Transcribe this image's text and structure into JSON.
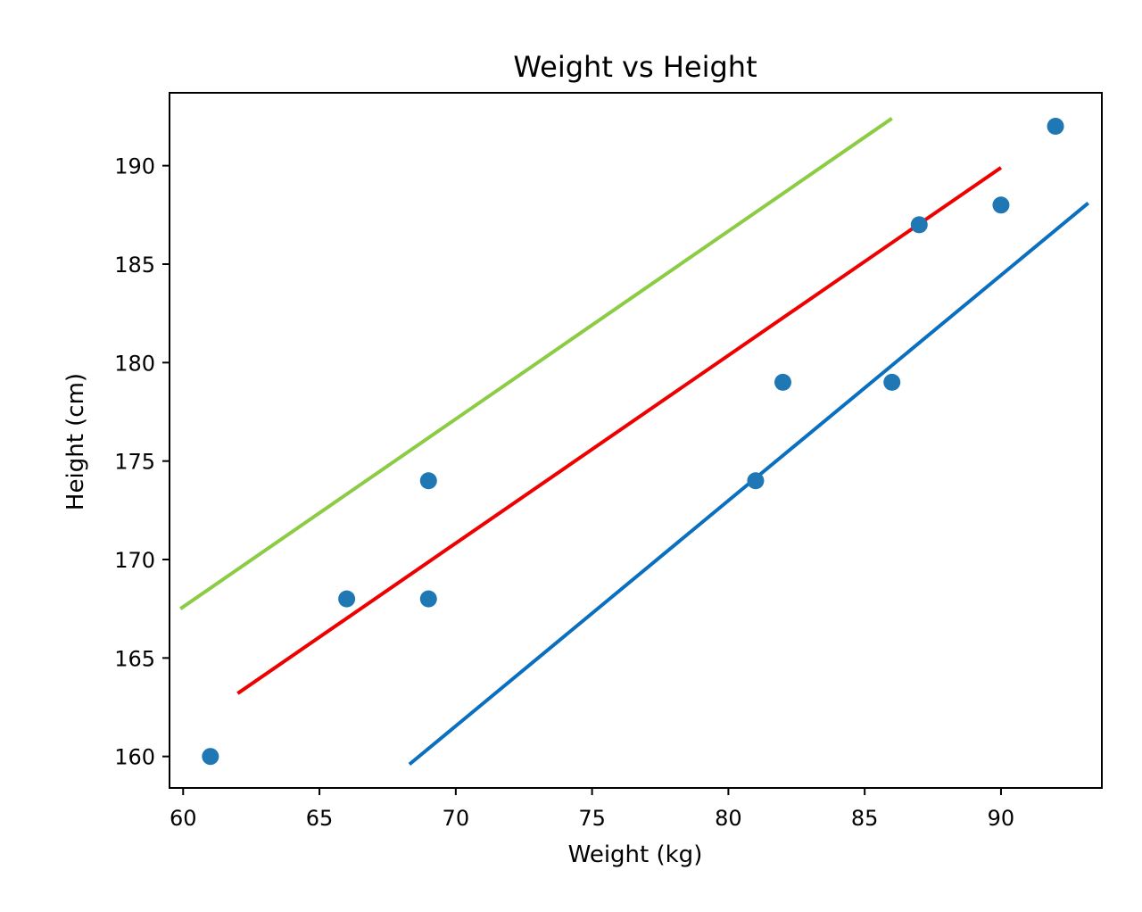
{
  "chart_data": {
    "type": "scatter",
    "title": "Weight vs Height",
    "xlabel": "Weight (kg)",
    "ylabel": "Height (cm)",
    "xlim": [
      59.5,
      93.7
    ],
    "ylim": [
      158.4,
      193.7
    ],
    "x_ticks": [
      60,
      65,
      70,
      75,
      80,
      85,
      90
    ],
    "y_ticks": [
      160,
      165,
      170,
      175,
      180,
      185,
      190
    ],
    "grid": false,
    "legend": null,
    "points": {
      "color": "#1f77b4",
      "data": [
        {
          "x": 61,
          "y": 160
        },
        {
          "x": 66,
          "y": 168
        },
        {
          "x": 69,
          "y": 168
        },
        {
          "x": 69,
          "y": 174
        },
        {
          "x": 81,
          "y": 174
        },
        {
          "x": 82,
          "y": 179
        },
        {
          "x": 86,
          "y": 179
        },
        {
          "x": 87,
          "y": 187
        },
        {
          "x": 90,
          "y": 188
        },
        {
          "x": 92,
          "y": 192
        }
      ]
    },
    "lines": [
      {
        "color": "#8ccc44",
        "x": [
          59.9,
          86.0
        ],
        "y": [
          167.5,
          192.4
        ]
      },
      {
        "color": "#ee0000",
        "x": [
          62.0,
          90.0
        ],
        "y": [
          163.2,
          189.9
        ]
      },
      {
        "color": "#0b6fbf",
        "x": [
          68.3,
          93.2
        ],
        "y": [
          159.6,
          188.1
        ]
      }
    ]
  }
}
